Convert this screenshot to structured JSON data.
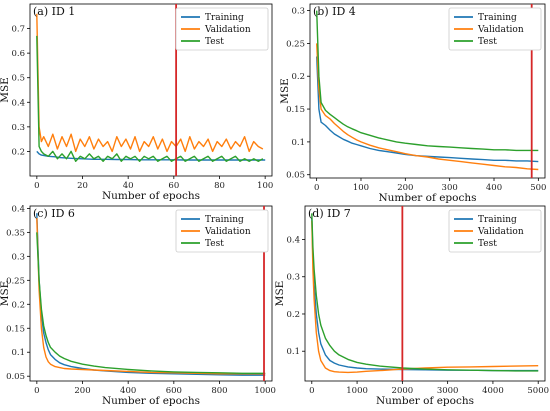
{
  "chart_data": [
    {
      "type": "line",
      "title": "(a) ID 1",
      "xlabel": "Number of epochs",
      "ylabel": "MSE",
      "xlim": [
        -3,
        103
      ],
      "ylim": [
        0.1,
        0.8
      ],
      "xticks": [
        0,
        20,
        40,
        60,
        80,
        100
      ],
      "yticks": [
        0.2,
        0.3,
        0.4,
        0.5,
        0.6,
        0.7
      ],
      "legend": "top-right",
      "vline": 61,
      "series": [
        {
          "name": "Training",
          "color": "#1f77b4",
          "x": [
            0,
            1,
            2,
            5,
            8,
            10,
            15,
            20,
            25,
            30,
            35,
            40,
            45,
            50,
            55,
            60,
            65,
            70,
            75,
            80,
            85,
            90,
            95,
            100
          ],
          "values": [
            0.2,
            0.19,
            0.185,
            0.18,
            0.178,
            0.175,
            0.172,
            0.17,
            0.168,
            0.168,
            0.167,
            0.167,
            0.166,
            0.166,
            0.166,
            0.166,
            0.165,
            0.165,
            0.165,
            0.165,
            0.165,
            0.165,
            0.165,
            0.165
          ]
        },
        {
          "name": "Validation",
          "color": "#ff7f0e",
          "x": [
            0,
            1,
            2,
            3,
            5,
            7,
            9,
            11,
            13,
            15,
            17,
            19,
            21,
            23,
            25,
            27,
            29,
            31,
            33,
            35,
            37,
            39,
            41,
            43,
            45,
            47,
            49,
            51,
            53,
            55,
            57,
            59,
            61,
            63,
            65,
            67,
            69,
            71,
            73,
            75,
            77,
            79,
            81,
            83,
            85,
            87,
            89,
            91,
            93,
            95,
            97,
            99
          ],
          "values": [
            0.76,
            0.3,
            0.24,
            0.26,
            0.22,
            0.27,
            0.21,
            0.26,
            0.22,
            0.27,
            0.2,
            0.25,
            0.22,
            0.26,
            0.21,
            0.25,
            0.22,
            0.24,
            0.2,
            0.26,
            0.22,
            0.25,
            0.21,
            0.26,
            0.2,
            0.24,
            0.22,
            0.26,
            0.21,
            0.25,
            0.2,
            0.24,
            0.22,
            0.25,
            0.2,
            0.26,
            0.21,
            0.24,
            0.22,
            0.25,
            0.2,
            0.24,
            0.22,
            0.25,
            0.21,
            0.24,
            0.22,
            0.26,
            0.2,
            0.24,
            0.22,
            0.21
          ]
        },
        {
          "name": "Test",
          "color": "#2ca02c",
          "x": [
            0,
            1,
            2,
            3,
            5,
            7,
            9,
            11,
            13,
            15,
            17,
            19,
            21,
            23,
            25,
            27,
            29,
            31,
            33,
            35,
            37,
            39,
            41,
            43,
            45,
            47,
            49,
            51,
            53,
            55,
            57,
            59,
            61,
            63,
            65,
            67,
            69,
            71,
            73,
            75,
            77,
            79,
            81,
            83,
            85,
            87,
            89,
            91,
            93,
            95,
            97,
            99
          ],
          "values": [
            0.67,
            0.22,
            0.2,
            0.19,
            0.18,
            0.2,
            0.17,
            0.19,
            0.17,
            0.2,
            0.16,
            0.18,
            0.17,
            0.19,
            0.17,
            0.18,
            0.16,
            0.18,
            0.17,
            0.19,
            0.16,
            0.18,
            0.17,
            0.18,
            0.16,
            0.18,
            0.17,
            0.18,
            0.16,
            0.17,
            0.18,
            0.16,
            0.17,
            0.18,
            0.16,
            0.17,
            0.18,
            0.16,
            0.17,
            0.18,
            0.16,
            0.17,
            0.18,
            0.16,
            0.17,
            0.18,
            0.16,
            0.17,
            0.16,
            0.17,
            0.16,
            0.17
          ]
        }
      ]
    },
    {
      "type": "line",
      "title": "(b) ID 4",
      "xlabel": "Number of epochs",
      "ylabel": "MSE",
      "xlim": [
        -15,
        515
      ],
      "ylim": [
        0.045,
        0.31
      ],
      "xticks": [
        0,
        100,
        200,
        300,
        400,
        500
      ],
      "yticks": [
        0.05,
        0.1,
        0.15,
        0.2,
        0.25,
        0.3
      ],
      "legend": "top-right",
      "vline": 485,
      "series": [
        {
          "name": "Training",
          "color": "#1f77b4",
          "x": [
            0,
            5,
            10,
            20,
            30,
            40,
            50,
            60,
            70,
            80,
            90,
            100,
            120,
            140,
            160,
            180,
            200,
            225,
            250,
            275,
            300,
            325,
            350,
            375,
            400,
            425,
            450,
            475,
            500
          ],
          "values": [
            0.23,
            0.15,
            0.13,
            0.125,
            0.118,
            0.112,
            0.108,
            0.104,
            0.101,
            0.098,
            0.096,
            0.094,
            0.09,
            0.087,
            0.085,
            0.083,
            0.081,
            0.079,
            0.078,
            0.077,
            0.076,
            0.075,
            0.074,
            0.073,
            0.072,
            0.072,
            0.071,
            0.071,
            0.07
          ]
        },
        {
          "name": "Validation",
          "color": "#ff7f0e",
          "x": [
            0,
            5,
            10,
            20,
            30,
            40,
            50,
            60,
            70,
            80,
            90,
            100,
            120,
            140,
            160,
            180,
            200,
            225,
            250,
            275,
            300,
            325,
            350,
            375,
            400,
            425,
            450,
            475,
            500
          ],
          "values": [
            0.25,
            0.18,
            0.15,
            0.14,
            0.135,
            0.128,
            0.122,
            0.116,
            0.111,
            0.107,
            0.103,
            0.1,
            0.095,
            0.091,
            0.088,
            0.085,
            0.082,
            0.079,
            0.077,
            0.074,
            0.072,
            0.07,
            0.068,
            0.066,
            0.064,
            0.062,
            0.061,
            0.059,
            0.058
          ]
        },
        {
          "name": "Test",
          "color": "#2ca02c",
          "x": [
            0,
            5,
            10,
            20,
            30,
            40,
            50,
            60,
            70,
            80,
            90,
            100,
            120,
            140,
            160,
            180,
            200,
            225,
            250,
            275,
            300,
            325,
            350,
            375,
            400,
            425,
            450,
            475,
            500
          ],
          "values": [
            0.3,
            0.2,
            0.16,
            0.148,
            0.142,
            0.137,
            0.132,
            0.127,
            0.123,
            0.12,
            0.117,
            0.114,
            0.11,
            0.106,
            0.103,
            0.1,
            0.098,
            0.096,
            0.094,
            0.093,
            0.092,
            0.091,
            0.09,
            0.089,
            0.088,
            0.088,
            0.087,
            0.087,
            0.087
          ]
        }
      ]
    },
    {
      "type": "line",
      "title": "(c) ID 6",
      "xlabel": "Number of epochs",
      "ylabel": "MSE",
      "xlim": [
        -30,
        1030
      ],
      "ylim": [
        0.04,
        0.405
      ],
      "xticks": [
        0,
        200,
        400,
        600,
        800,
        1000
      ],
      "yticks": [
        0.05,
        0.1,
        0.15,
        0.2,
        0.25,
        0.3,
        0.35,
        0.4
      ],
      "legend": "top-right",
      "vline": 995,
      "series": [
        {
          "name": "Training",
          "color": "#1f77b4",
          "x": [
            0,
            10,
            20,
            30,
            40,
            50,
            60,
            80,
            100,
            120,
            150,
            200,
            250,
            300,
            400,
            500,
            600,
            700,
            800,
            900,
            1000
          ],
          "values": [
            0.39,
            0.25,
            0.18,
            0.14,
            0.12,
            0.105,
            0.095,
            0.085,
            0.078,
            0.074,
            0.07,
            0.066,
            0.063,
            0.061,
            0.058,
            0.056,
            0.055,
            0.054,
            0.053,
            0.052,
            0.052
          ]
        },
        {
          "name": "Validation",
          "color": "#ff7f0e",
          "x": [
            0,
            10,
            20,
            30,
            40,
            50,
            60,
            80,
            100,
            120,
            150,
            200,
            250,
            300,
            400,
            500,
            600,
            700,
            800,
            900,
            1000
          ],
          "values": [
            0.38,
            0.23,
            0.15,
            0.11,
            0.09,
            0.08,
            0.075,
            0.07,
            0.068,
            0.066,
            0.065,
            0.064,
            0.063,
            0.062,
            0.06,
            0.058,
            0.057,
            0.056,
            0.055,
            0.055,
            0.055
          ]
        },
        {
          "name": "Test",
          "color": "#2ca02c",
          "x": [
            0,
            10,
            20,
            30,
            40,
            50,
            60,
            80,
            100,
            120,
            150,
            200,
            250,
            300,
            400,
            500,
            600,
            700,
            800,
            900,
            1000
          ],
          "values": [
            0.35,
            0.25,
            0.19,
            0.155,
            0.135,
            0.12,
            0.11,
            0.1,
            0.092,
            0.087,
            0.081,
            0.075,
            0.071,
            0.068,
            0.064,
            0.061,
            0.059,
            0.058,
            0.057,
            0.056,
            0.056
          ]
        }
      ]
    },
    {
      "type": "line",
      "title": "(d) ID 7",
      "xlabel": "Number of epochs",
      "ylabel": "MSE",
      "xlim": [
        -150,
        5150
      ],
      "ylim": [
        0.02,
        0.49
      ],
      "xticks": [
        0,
        1000,
        2000,
        3000,
        4000,
        5000
      ],
      "yticks": [
        0.1,
        0.2,
        0.3,
        0.4
      ],
      "legend": "top-right",
      "vline": 2000,
      "series": [
        {
          "name": "Training",
          "color": "#1f77b4",
          "x": [
            0,
            25,
            50,
            100,
            150,
            200,
            300,
            400,
            500,
            600,
            800,
            1000,
            1200,
            1500,
            2000,
            2500,
            3000,
            3500,
            4000,
            4500,
            5000
          ],
          "values": [
            0.46,
            0.35,
            0.28,
            0.2,
            0.15,
            0.12,
            0.09,
            0.075,
            0.068,
            0.063,
            0.058,
            0.055,
            0.053,
            0.052,
            0.051,
            0.05,
            0.049,
            0.049,
            0.048,
            0.048,
            0.048
          ]
        },
        {
          "name": "Validation",
          "color": "#ff7f0e",
          "x": [
            0,
            25,
            50,
            100,
            150,
            200,
            300,
            400,
            500,
            600,
            800,
            1000,
            1200,
            1500,
            2000,
            2500,
            3000,
            3500,
            4000,
            4500,
            5000
          ],
          "values": [
            0.45,
            0.32,
            0.24,
            0.15,
            0.1,
            0.075,
            0.055,
            0.048,
            0.045,
            0.044,
            0.043,
            0.044,
            0.046,
            0.048,
            0.052,
            0.055,
            0.057,
            0.058,
            0.059,
            0.06,
            0.061
          ]
        },
        {
          "name": "Test",
          "color": "#2ca02c",
          "x": [
            0,
            25,
            50,
            100,
            150,
            200,
            300,
            400,
            500,
            600,
            800,
            1000,
            1200,
            1500,
            2000,
            2500,
            3000,
            3500,
            4000,
            4500,
            5000
          ],
          "values": [
            0.47,
            0.38,
            0.32,
            0.25,
            0.2,
            0.17,
            0.135,
            0.115,
            0.1,
            0.09,
            0.078,
            0.07,
            0.065,
            0.06,
            0.055,
            0.052,
            0.05,
            0.049,
            0.048,
            0.047,
            0.047
          ]
        }
      ]
    }
  ]
}
